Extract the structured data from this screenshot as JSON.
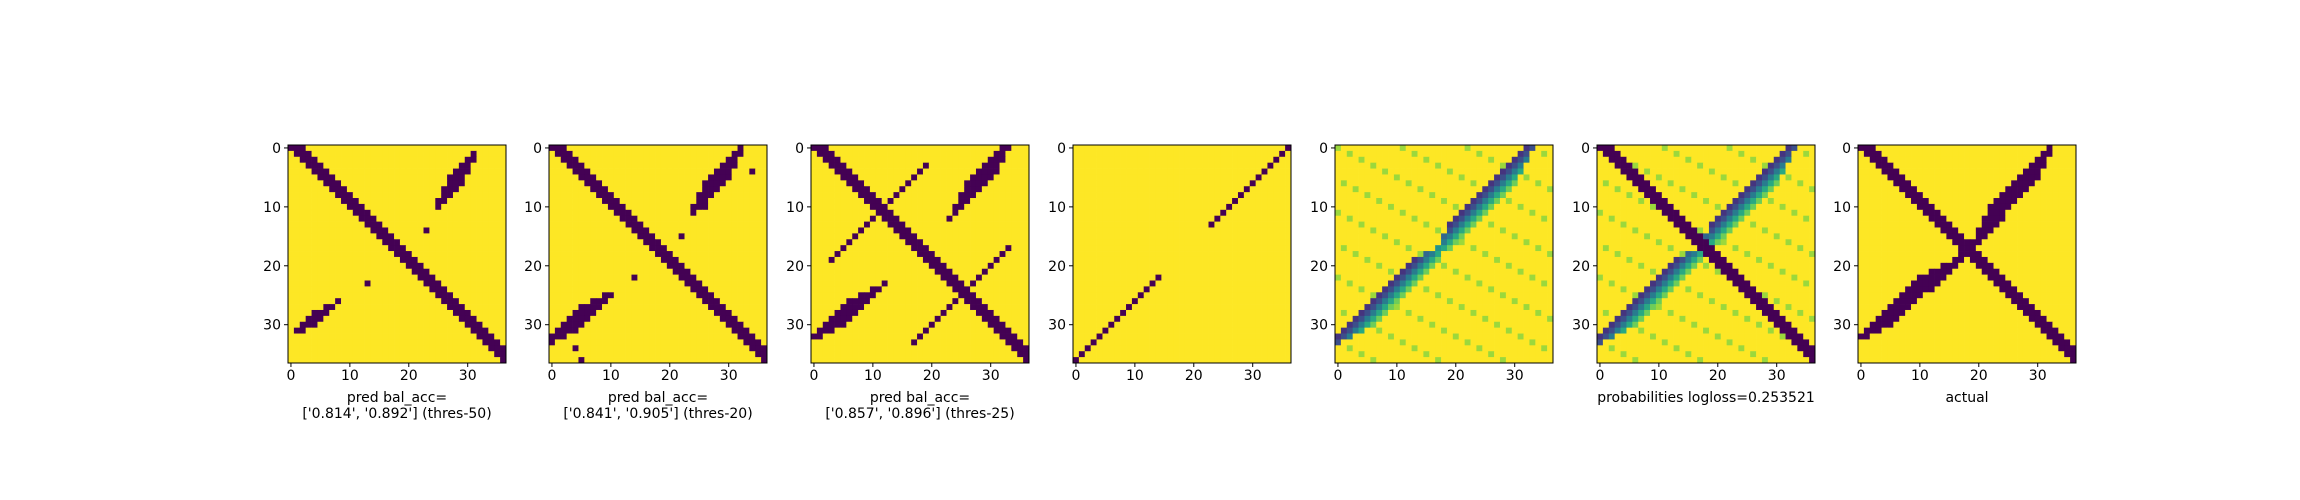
{
  "chart_data": [
    {
      "type": "heatmap",
      "grid_size": 37,
      "colormap": "viridis",
      "x_ticks": [
        0,
        10,
        20,
        30
      ],
      "y_ticks": [
        0,
        10,
        20,
        30
      ],
      "label_lines": [
        "pred bal_acc=",
        "['0.814', '0.892'] (thres-50)"
      ],
      "dark_bands": [
        {
          "kind": "anti_diag",
          "off": 0,
          "width": 2,
          "from": 0,
          "to": 36
        },
        {
          "kind": "blob_upper",
          "from": 27,
          "to": 31,
          "extent": 6
        },
        {
          "kind": "blob_lower",
          "from": 28,
          "to": 31,
          "extent": 5
        }
      ],
      "spots": [
        [
          13,
          23
        ],
        [
          23,
          14
        ]
      ]
    },
    {
      "type": "heatmap",
      "grid_size": 37,
      "colormap": "viridis",
      "x_ticks": [
        0,
        10,
        20,
        30
      ],
      "y_ticks": [
        0,
        10,
        20,
        30
      ],
      "label_lines": [
        "pred bal_acc=",
        "['0.841', '0.905'] (thres-20)"
      ],
      "dark_bands": [
        {
          "kind": "anti_diag",
          "off": 0,
          "width": 2,
          "from": 0,
          "to": 36
        },
        {
          "kind": "blob_upper",
          "from": 26,
          "to": 32,
          "extent": 6
        },
        {
          "kind": "blob_lower",
          "from": 27,
          "to": 33,
          "extent": 6
        }
      ],
      "spots": [
        [
          4,
          34
        ],
        [
          5,
          36
        ],
        [
          14,
          22
        ],
        [
          22,
          15
        ],
        [
          26,
          10
        ],
        [
          34,
          4
        ]
      ]
    },
    {
      "type": "heatmap",
      "grid_size": 37,
      "colormap": "viridis",
      "x_ticks": [
        0,
        10,
        20,
        30
      ],
      "y_ticks": [
        0,
        10,
        20,
        30
      ],
      "label_lines": [
        "pred bal_acc=",
        "['0.857', '0.896'] (thres-25)"
      ],
      "dark_bands": [
        {
          "kind": "anti_diag",
          "off": 0,
          "width": 2,
          "from": 0,
          "to": 36
        },
        {
          "kind": "blob_upper",
          "from": 26,
          "to": 33,
          "extent": 7
        },
        {
          "kind": "blob_lower",
          "from": 26,
          "to": 32,
          "extent": 7
        },
        {
          "kind": "diag_line",
          "off": 14,
          "from": 17,
          "to": 33,
          "width": 1
        },
        {
          "kind": "diag_line",
          "off": -14,
          "from": 3,
          "to": 19,
          "width": 1
        }
      ],
      "spots": []
    },
    {
      "type": "heatmap",
      "grid_size": 37,
      "colormap": "viridis",
      "x_ticks": [
        0,
        10,
        20,
        30
      ],
      "y_ticks": [
        0,
        10,
        20,
        30
      ],
      "label_lines": [],
      "dark_bands": [
        {
          "kind": "diag_line",
          "off": 0,
          "from": 0,
          "to": 36,
          "width": 1,
          "skip_from": 14,
          "skip_to": 21
        }
      ],
      "spots": []
    },
    {
      "type": "heatmap",
      "grid_size": 37,
      "colormap": "viridis",
      "continuous": true,
      "x_ticks": [
        0,
        10,
        20,
        30
      ],
      "y_ticks": [
        0,
        10,
        20,
        30
      ],
      "label_lines": [],
      "dark_bands": [
        {
          "kind": "blob_upper",
          "from": 19,
          "to": 33,
          "extent": 8,
          "level": 0.15
        },
        {
          "kind": "blob_lower",
          "from": 19,
          "to": 33,
          "extent": 8,
          "level": 0.15
        }
      ],
      "spots": []
    },
    {
      "type": "heatmap",
      "grid_size": 37,
      "colormap": "viridis",
      "continuous": true,
      "x_ticks": [
        0,
        10,
        20,
        30
      ],
      "y_ticks": [
        0,
        10,
        20,
        30
      ],
      "label_lines": [
        "probabilities logloss=0.253521"
      ],
      "dark_bands": [
        {
          "kind": "anti_diag",
          "off": 0,
          "width": 2,
          "from": 0,
          "to": 36
        },
        {
          "kind": "blob_upper",
          "from": 19,
          "to": 33,
          "extent": 8,
          "level": 0.15
        },
        {
          "kind": "blob_lower",
          "from": 19,
          "to": 33,
          "extent": 8,
          "level": 0.15
        }
      ],
      "spots": []
    },
    {
      "type": "heatmap",
      "grid_size": 37,
      "colormap": "viridis",
      "x_ticks": [
        0,
        10,
        20,
        30
      ],
      "y_ticks": [
        0,
        10,
        20,
        30
      ],
      "label_lines": [
        "actual"
      ],
      "dark_bands": [
        {
          "kind": "anti_diag",
          "off": 0,
          "width": 2,
          "from": 0,
          "to": 36
        },
        {
          "kind": "diag_line",
          "off": -1,
          "from": 12,
          "to": 24,
          "width": 2
        },
        {
          "kind": "blob_upper",
          "from": 22,
          "to": 32,
          "extent": 7
        },
        {
          "kind": "blob_lower",
          "from": 22,
          "to": 32,
          "extent": 7
        }
      ],
      "spots": []
    }
  ],
  "colors": {
    "low": "#440154",
    "high": "#fde725"
  }
}
